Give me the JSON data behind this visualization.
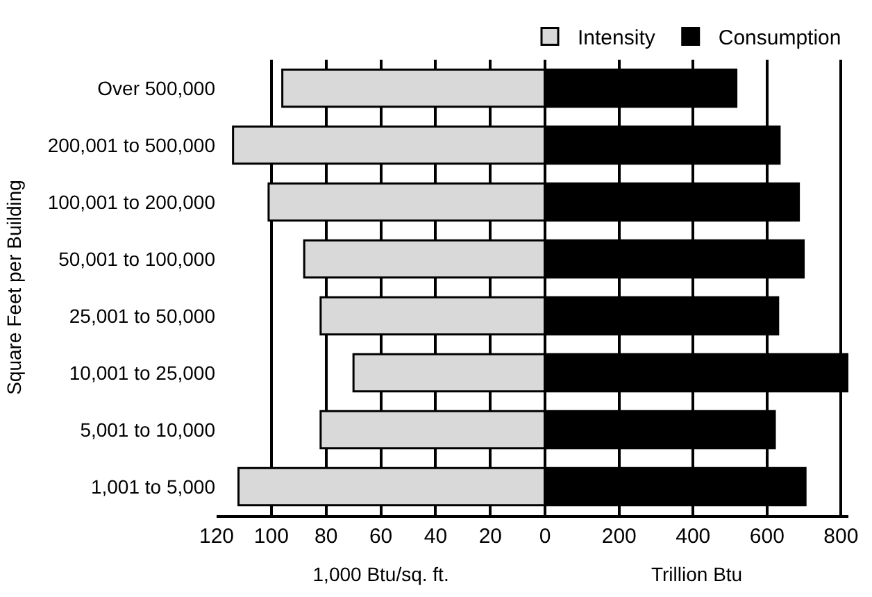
{
  "chart_data": [
    {
      "type": "bar",
      "orientation": "horizontal",
      "ylabel": "Square Feet per Building",
      "xlabel": "1,000 Btu/sq. ft.",
      "categories": [
        "Over 500,000",
        "200,001 to 500,000",
        "100,001 to 200,000",
        "50,001 to 100,000",
        "25,001 to 50,000",
        "10,001 to 25,000",
        "5,001 to 10,000",
        "1,001 to 5,000"
      ],
      "series": [
        {
          "name": "Intensity",
          "color": "#d9d9d9",
          "values": [
            96,
            114,
            101,
            88,
            82,
            70,
            82,
            112
          ]
        }
      ],
      "xlim": [
        120,
        0
      ],
      "xticks": [
        120,
        100,
        80,
        60,
        40,
        20,
        0
      ],
      "grid": "x",
      "legend": "top right"
    },
    {
      "type": "bar",
      "orientation": "horizontal",
      "xlabel": "Trillion Btu",
      "tick_labels": "x",
      "categories": [
        "Over 500,000",
        "200,001 to 500,000",
        "100,001 to 200,000",
        "50,001 to 100,000",
        "25,001 to 50,000",
        "10,001 to 25,000",
        "5,001 to 10,000",
        "1,001 to 5,000"
      ],
      "series": [
        {
          "name": "Consumption",
          "color": "#000000",
          "values": [
            517,
            634,
            686,
            699,
            630,
            820,
            621,
            704
          ]
        }
      ],
      "xlim": [
        0,
        820
      ],
      "xticks": [
        {
          "value": 0,
          "label": null
        },
        200,
        400,
        600,
        800
      ],
      "grid": "x",
      "legend": "top right"
    }
  ]
}
